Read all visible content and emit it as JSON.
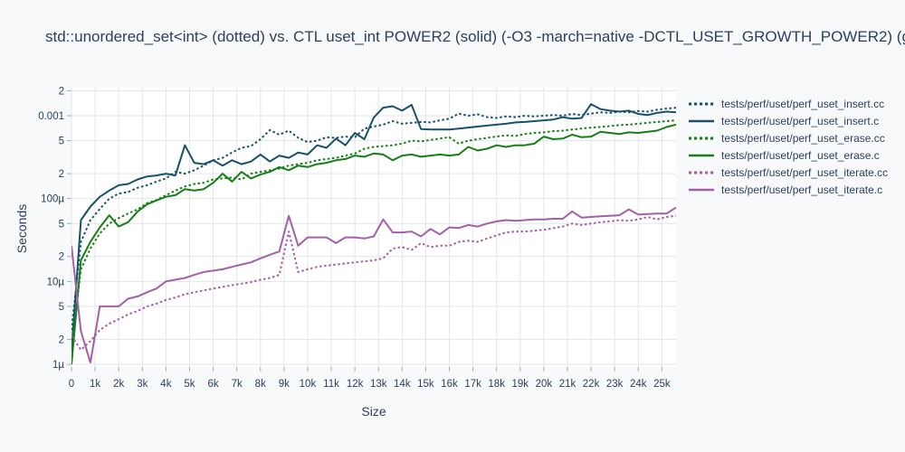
{
  "colors": {
    "page_background": "#f8f9fa",
    "plot_background": "#ffffff",
    "grid": "#e2e5e9",
    "tick": "#a5adba",
    "text": "#2a3f5f",
    "insert_blue": "#17516b",
    "erase_green": "#157f15",
    "iterate_purple": "#a55fa9"
  },
  "chart_data": {
    "type": "line",
    "title": "std::unordered_set<int> (dotted) vs. CTL uset_int POWER2 (solid) (-O3 -march=native -DCTL_USET_GROWTH_POWER2) (g",
    "xlabel": "Size",
    "ylabel": "Seconds",
    "grid": true,
    "legend_position": "right",
    "x_axis": {
      "range": [
        0,
        25600
      ],
      "tick_step": 1000,
      "tick_labels": [
        "0",
        "1k",
        "2k",
        "3k",
        "4k",
        "5k",
        "6k",
        "7k",
        "8k",
        "9k",
        "10k",
        "11k",
        "12k",
        "13k",
        "14k",
        "15k",
        "16k",
        "17k",
        "18k",
        "19k",
        "20k",
        "21k",
        "22k",
        "23k",
        "24k",
        "25k"
      ]
    },
    "y_axis": {
      "scale": "log",
      "range": [
        1e-06,
        0.002
      ],
      "ticks": [
        {
          "v": 1e-06,
          "label": "1µ"
        },
        {
          "v": 2e-06,
          "label": "2"
        },
        {
          "v": 5e-06,
          "label": "5"
        },
        {
          "v": 1e-05,
          "label": "10µ"
        },
        {
          "v": 2e-05,
          "label": "2"
        },
        {
          "v": 5e-05,
          "label": "5"
        },
        {
          "v": 0.0001,
          "label": "100µ"
        },
        {
          "v": 0.0002,
          "label": "2"
        },
        {
          "v": 0.0005,
          "label": "5"
        },
        {
          "v": 0.001,
          "label": "0.001"
        },
        {
          "v": 0.002,
          "label": "2"
        }
      ]
    },
    "x_step": 400,
    "series": [
      {
        "label": "tests/perf/uset/perf_uset_insert.cc",
        "color": "#17516b",
        "dash": "dot",
        "values": [
          2.6e-06,
          3e-05,
          5.5e-05,
          7.5e-05,
          0.0001,
          0.000115,
          0.00012,
          0.000135,
          0.000145,
          0.00016,
          0.000175,
          0.00021,
          0.0002,
          0.00022,
          0.00025,
          0.00029,
          0.00031,
          0.00036,
          0.00041,
          0.00043,
          0.00052,
          0.00067,
          0.00059,
          0.00066,
          0.00054,
          0.00048,
          0.0005,
          0.00055,
          0.00054,
          0.00056,
          0.00055,
          0.0007,
          0.00074,
          0.00078,
          0.00086,
          0.0008,
          0.00082,
          0.00084,
          0.00083,
          0.00088,
          0.00092,
          0.00106,
          0.001,
          0.00104,
          0.00096,
          0.00094,
          0.00098,
          0.00096,
          0.001,
          0.00098,
          0.001,
          0.00102,
          0.001,
          0.00105,
          0.00102,
          0.00106,
          0.0011,
          0.00108,
          0.00112,
          0.0011,
          0.00114,
          0.00112,
          0.00118,
          0.00122,
          0.00125
        ]
      },
      {
        "label": "tests/perf/uset/perf_uset_insert.c",
        "color": "#17516b",
        "dash": "solid",
        "values": [
          1.4e-06,
          5.5e-05,
          8e-05,
          0.000105,
          0.000125,
          0.000145,
          0.00015,
          0.00017,
          0.000185,
          0.00019,
          0.0002,
          0.00019,
          0.00044,
          0.00027,
          0.00026,
          0.00029,
          0.00025,
          0.00029,
          0.00026,
          0.00028,
          0.00034,
          0.00028,
          0.00033,
          0.00031,
          0.00036,
          0.00034,
          0.00044,
          0.00041,
          0.00053,
          0.00044,
          0.00062,
          0.00052,
          0.00095,
          0.00125,
          0.0013,
          0.00115,
          0.00135,
          0.00069,
          0.00068,
          0.00068,
          0.00068,
          0.0007,
          0.00072,
          0.00074,
          0.00076,
          0.00078,
          0.0008,
          0.00083,
          0.00084,
          0.00086,
          0.00088,
          0.0009,
          0.00096,
          0.00092,
          0.00094,
          0.00138,
          0.0012,
          0.00115,
          0.00112,
          0.00115,
          0.00105,
          0.00102,
          0.00108,
          0.00112,
          0.0011
        ]
      },
      {
        "label": "tests/perf/uset/perf_uset_erase.cc",
        "color": "#157f15",
        "dash": "dot",
        "values": [
          1.6e-06,
          1.4e-05,
          2.5e-05,
          3.8e-05,
          5e-05,
          5.8e-05,
          6.6e-05,
          7.4e-05,
          8.8e-05,
          9.6e-05,
          0.00011,
          0.000125,
          0.00014,
          0.00015,
          0.000155,
          0.00017,
          0.000175,
          0.00018,
          0.00017,
          0.0002,
          0.00021,
          0.00022,
          0.00023,
          0.00025,
          0.00026,
          0.00027,
          0.00029,
          0.0003,
          0.00031,
          0.00033,
          0.00035,
          0.0004,
          0.00042,
          0.00043,
          0.00044,
          0.00046,
          0.0005,
          0.00049,
          0.00051,
          0.00053,
          0.00055,
          0.00046,
          0.0005,
          0.00052,
          0.00054,
          0.00056,
          0.00058,
          0.00057,
          0.0006,
          0.00062,
          0.00063,
          0.00065,
          0.00066,
          0.00068,
          0.0007,
          0.00072,
          0.00073,
          0.00075,
          0.00077,
          0.00078,
          0.0008,
          0.00082,
          0.00084,
          0.00086,
          0.00088
        ]
      },
      {
        "label": "tests/perf/uset/perf_uset_erase.c",
        "color": "#157f15",
        "dash": "solid",
        "values": [
          1e-06,
          1.8e-05,
          3e-05,
          4.5e-05,
          6.3e-05,
          4.6e-05,
          5.2e-05,
          7e-05,
          8.5e-05,
          9.5e-05,
          0.000105,
          0.00011,
          0.00013,
          0.000125,
          0.00013,
          0.000155,
          0.0002,
          0.00016,
          0.00021,
          0.000175,
          0.000195,
          0.00021,
          0.00024,
          0.00022,
          0.00025,
          0.00024,
          0.00026,
          0.00027,
          0.00029,
          0.0003,
          0.00033,
          0.00032,
          0.00035,
          0.00034,
          0.00029,
          0.00033,
          0.00034,
          0.00032,
          0.00033,
          0.00034,
          0.00033,
          0.00034,
          0.00042,
          0.00038,
          0.0004,
          0.00044,
          0.00042,
          0.00044,
          0.00044,
          0.00046,
          0.00056,
          0.00052,
          0.00053,
          0.00059,
          0.00055,
          0.00056,
          0.00064,
          0.00062,
          0.0006,
          0.00063,
          0.00062,
          0.00064,
          0.00066,
          0.00073,
          0.00078
        ]
      },
      {
        "label": "tests/perf/uset/perf_uset_iterate.cc",
        "color": "#a55fa9",
        "dash": "dot",
        "values": [
          2.2e-06,
          1.5e-06,
          1.9e-06,
          2.6e-06,
          3.1e-06,
          3.5e-06,
          4e-06,
          4.4e-06,
          5e-06,
          5.4e-06,
          6e-06,
          6.4e-06,
          7e-06,
          7.4e-06,
          7.8e-06,
          8.2e-06,
          8.6e-06,
          9e-06,
          9.4e-06,
          9.8e-06,
          1.05e-05,
          1.1e-05,
          1.2e-05,
          4e-05,
          1.3e-05,
          1.4e-05,
          1.5e-05,
          1.55e-05,
          1.6e-05,
          1.65e-05,
          1.7e-05,
          1.75e-05,
          1.8e-05,
          1.9e-05,
          2.5e-05,
          2.6e-05,
          2.4e-05,
          2.9e-05,
          2.6e-05,
          2.7e-05,
          2.7e-05,
          3e-05,
          3.1e-05,
          3e-05,
          3.3e-05,
          3.6e-05,
          3.9e-05,
          4e-05,
          4e-05,
          4.1e-05,
          4.2e-05,
          4.4e-05,
          4.6e-05,
          5e-05,
          4.8e-05,
          5e-05,
          5.2e-05,
          5.3e-05,
          5.5e-05,
          5.4e-05,
          5.6e-05,
          6e-05,
          5.6e-05,
          6e-05,
          6.2e-05
        ]
      },
      {
        "label": "tests/perf/uset/perf_uset_iterate.c",
        "color": "#a55fa9",
        "dash": "solid",
        "values": [
          2.7e-05,
          2.5e-06,
          1.05e-06,
          5e-06,
          5e-06,
          5e-06,
          6.2e-06,
          6.6e-06,
          7.4e-06,
          8.2e-06,
          1e-05,
          1.05e-05,
          1.1e-05,
          1.2e-05,
          1.3e-05,
          1.35e-05,
          1.4e-05,
          1.5e-05,
          1.6e-05,
          1.7e-05,
          1.9e-05,
          2.1e-05,
          2.3e-05,
          6.2e-05,
          2.7e-05,
          3.4e-05,
          3.4e-05,
          3.4e-05,
          2.9e-05,
          3.4e-05,
          3.4e-05,
          3.3e-05,
          3.5e-05,
          5.6e-05,
          3.9e-05,
          3.9e-05,
          4e-05,
          3.5e-05,
          4.3e-05,
          3.7e-05,
          4.5e-05,
          4.4e-05,
          4.8e-05,
          4.6e-05,
          5e-05,
          5.3e-05,
          5.5e-05,
          5.4e-05,
          5.5e-05,
          5.6e-05,
          5.6e-05,
          5.7e-05,
          5.7e-05,
          7e-05,
          5.9e-05,
          6e-05,
          6.1e-05,
          6.2e-05,
          6.3e-05,
          7.4e-05,
          6.4e-05,
          6.5e-05,
          6.6e-05,
          6.6e-05,
          7.8e-05
        ]
      }
    ]
  }
}
